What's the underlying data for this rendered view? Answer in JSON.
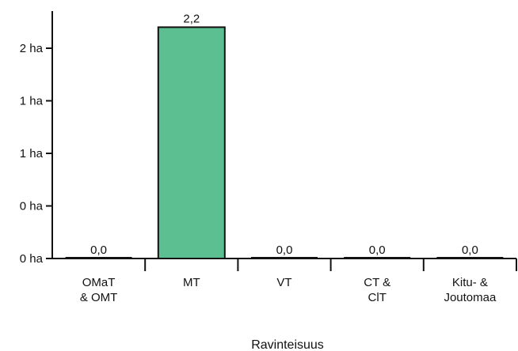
{
  "chart_data": {
    "type": "bar",
    "categories": [
      [
        "OMaT",
        "& OMT"
      ],
      [
        "MT"
      ],
      [
        "VT"
      ],
      [
        "CT &",
        "ClT"
      ],
      [
        "Kitu- &",
        "Joutomaa"
      ]
    ],
    "values": [
      0.0,
      2.2,
      0.0,
      0.0,
      0.0
    ],
    "data_labels": [
      "0,0",
      "2,2",
      "0,0",
      "0,0",
      "0,0"
    ],
    "y_ticks": [
      {
        "value": 0.0,
        "label": "0 ha"
      },
      {
        "value": 0.5,
        "label": "0 ha"
      },
      {
        "value": 1.0,
        "label": "1 ha"
      },
      {
        "value": 1.5,
        "label": "1 ha"
      },
      {
        "value": 2.0,
        "label": "2 ha"
      }
    ],
    "ylim": [
      0,
      2.5
    ],
    "xlabel": "Ravinteisuus",
    "ylabel": "",
    "title": "",
    "bar_color": "#5cbf91",
    "grid": false,
    "legend": "none"
  }
}
